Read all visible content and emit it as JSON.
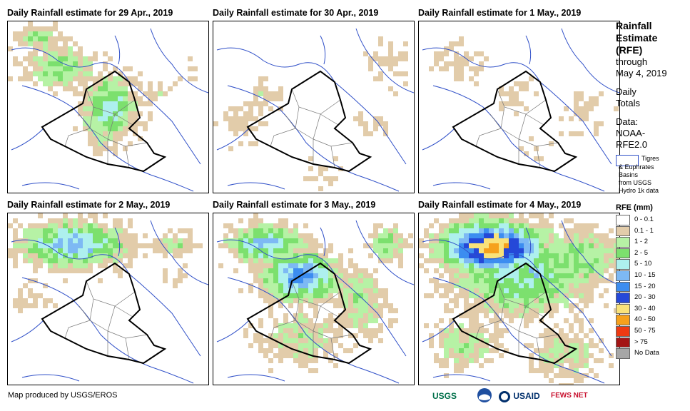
{
  "panels": [
    {
      "title": "Daily Rainfall estimate for 29 Apr., 2019"
    },
    {
      "title": "Daily Rainfall estimate for 30 Apr., 2019"
    },
    {
      "title": "Daily Rainfall estimate for 1 May., 2019"
    },
    {
      "title": "Daily Rainfall estimate for 2 May., 2019"
    },
    {
      "title": "Daily Rainfall estimate for 3 May., 2019"
    },
    {
      "title": "Daily Rainfall estimate for 4 May., 2019"
    }
  ],
  "legend": {
    "title_lines": [
      "Rainfall",
      "Estimate",
      "(RFE)"
    ],
    "through_lines": [
      "through",
      "May 4, 2019"
    ],
    "daily_lines": [
      "Daily",
      "Totals"
    ],
    "data_lines": [
      "Data:",
      "NOAA-",
      "RFE2.0"
    ],
    "basin_label": "Tigres",
    "basin_note": "& Euphrates\nBasins\nfrom USGS\nHydro 1k data",
    "rfe_title": "RFE (mm)",
    "classes": [
      {
        "label": "0 - 0.1",
        "color": "#ffffff"
      },
      {
        "label": "0.1 - 1",
        "color": "#e2ccaa"
      },
      {
        "label": "1 - 2",
        "color": "#b6f2a5"
      },
      {
        "label": "2 - 5",
        "color": "#7ce06e"
      },
      {
        "label": "5 - 10",
        "color": "#aef0ee"
      },
      {
        "label": "10 - 15",
        "color": "#7db9f4"
      },
      {
        "label": "15 - 20",
        "color": "#3c8df0"
      },
      {
        "label": "20 - 30",
        "color": "#2548d8"
      },
      {
        "label": "30 - 40",
        "color": "#f9e27a"
      },
      {
        "label": "40 - 50",
        "color": "#f6a11c"
      },
      {
        "label": "50 - 75",
        "color": "#ee3a12"
      },
      {
        "label": "> 75",
        "color": "#a31515"
      },
      {
        "label": "No Data",
        "color": "#a6a6a6"
      }
    ]
  },
  "footer": {
    "credit": "Map produced by USGS/EROS",
    "logos": [
      "USGS",
      "NOAA",
      "USAID",
      "FEWS NET"
    ]
  }
}
